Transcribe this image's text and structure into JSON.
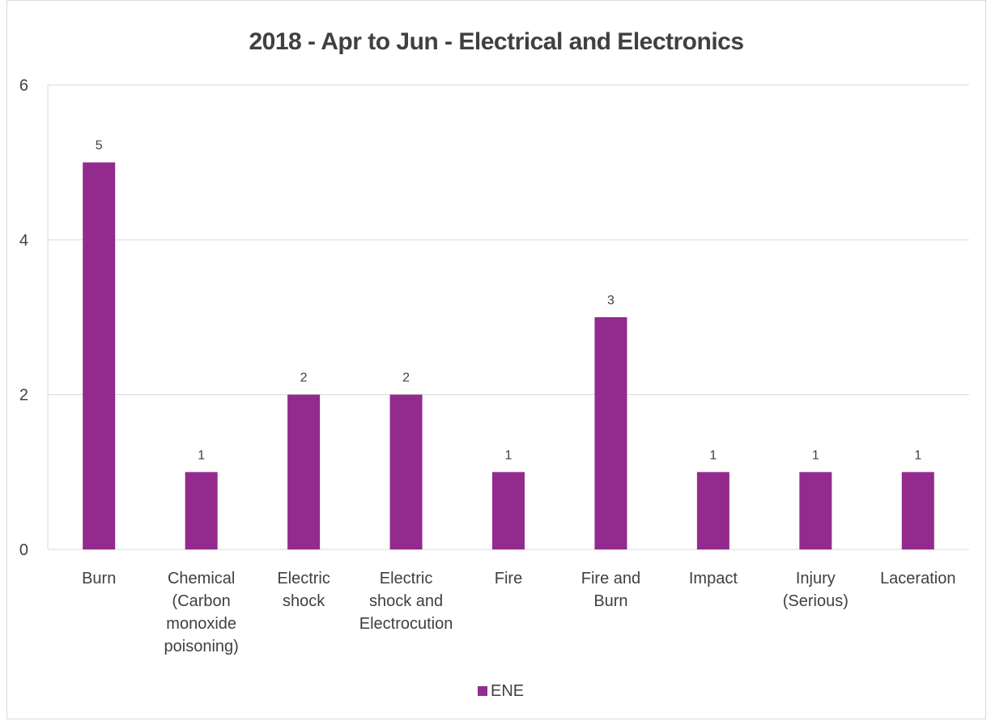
{
  "chart_data": {
    "type": "bar",
    "title": "2018 - Apr to Jun - Electrical and Electronics",
    "xlabel": "",
    "ylabel": "",
    "categories": [
      [
        "Burn"
      ],
      [
        "Chemical",
        "(Carbon",
        "monoxide",
        "poisoning)"
      ],
      [
        "Electric",
        "shock"
      ],
      [
        "Electric",
        "shock and",
        "Electrocution"
      ],
      [
        "Fire"
      ],
      [
        "Fire and",
        "Burn"
      ],
      [
        "Impact"
      ],
      [
        "Injury",
        "(Serious)"
      ],
      [
        "Laceration"
      ]
    ],
    "series": [
      {
        "name": "ENE",
        "color": "#922b8d",
        "values": [
          5,
          1,
          2,
          2,
          1,
          3,
          1,
          1,
          1
        ]
      }
    ],
    "ylim": [
      0,
      6
    ],
    "yticks": [
      "0",
      "2",
      "4",
      "6"
    ],
    "grid": true,
    "legend": "bottom"
  }
}
